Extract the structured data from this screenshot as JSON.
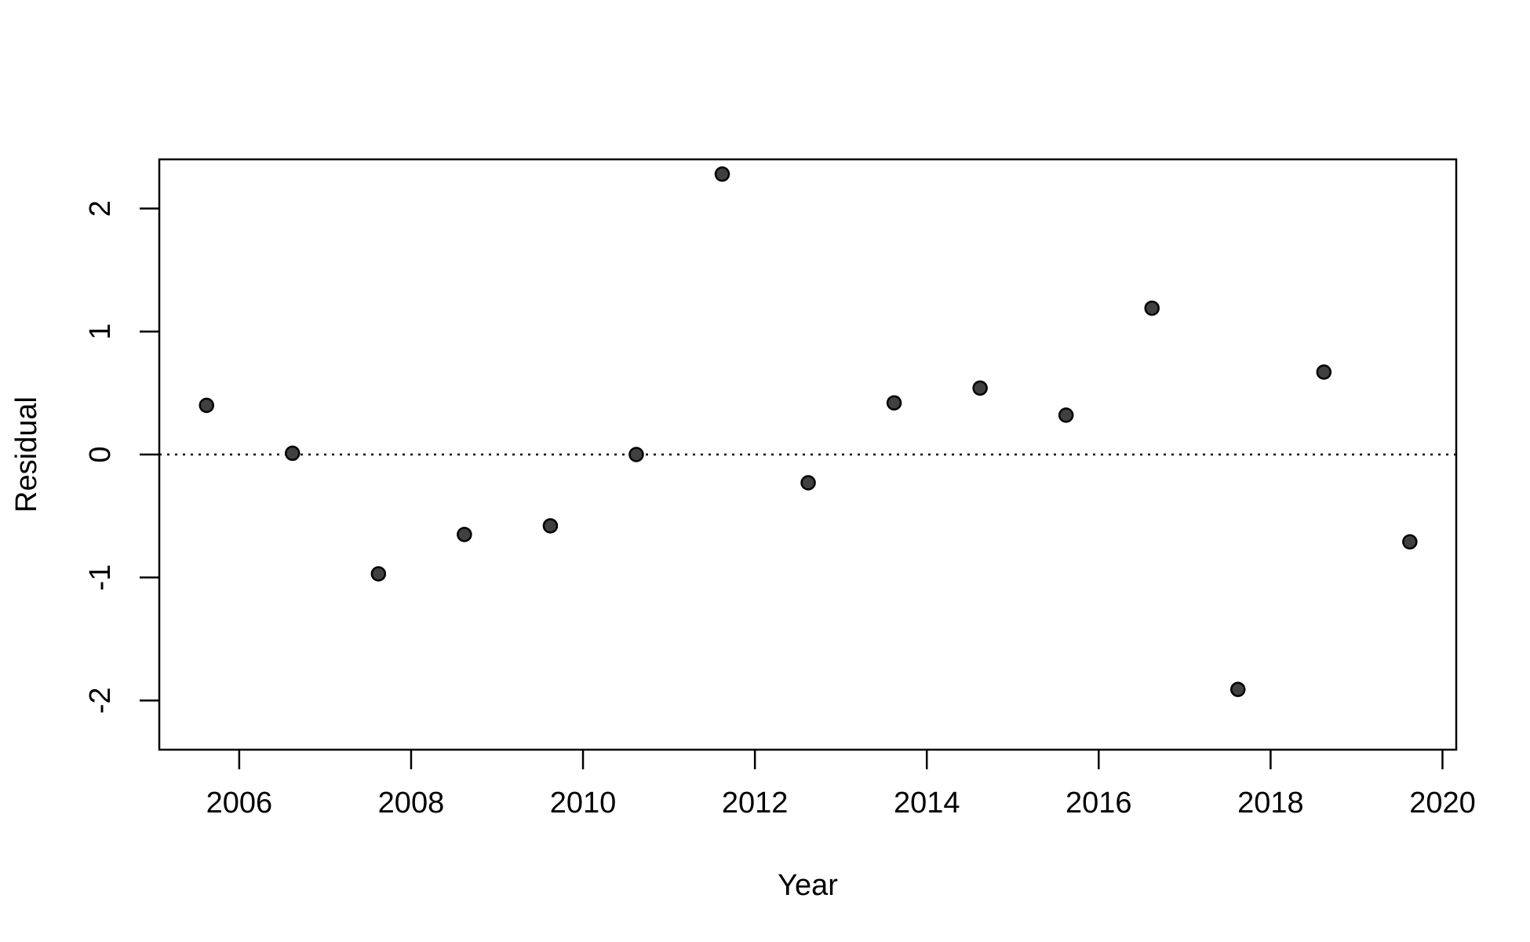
{
  "chart_data": {
    "type": "scatter",
    "title": "",
    "xlabel": "Year",
    "ylabel": "Residual",
    "xlim": [
      2005.07,
      2020.16
    ],
    "ylim": [
      -2.4,
      2.4
    ],
    "x_ticks": [
      2006,
      2008,
      2010,
      2012,
      2014,
      2016,
      2018,
      2020
    ],
    "y_ticks": [
      -2,
      -1,
      0,
      1,
      2
    ],
    "x_tick_labels": [
      "2006",
      "2008",
      "2010",
      "2012",
      "2014",
      "2016",
      "2018",
      "2020"
    ],
    "y_tick_labels": [
      "-2",
      "-1",
      "0",
      "1",
      "2"
    ],
    "reference_line": {
      "y": 0,
      "style": "dotted"
    },
    "grid": false,
    "legend": "none",
    "point_color": "#404040",
    "points": [
      {
        "x": 2005.62,
        "y": 0.4
      },
      {
        "x": 2006.62,
        "y": 0.01
      },
      {
        "x": 2007.62,
        "y": -0.97
      },
      {
        "x": 2008.62,
        "y": -0.65
      },
      {
        "x": 2009.62,
        "y": -0.58
      },
      {
        "x": 2010.62,
        "y": 0.0
      },
      {
        "x": 2011.62,
        "y": 2.28
      },
      {
        "x": 2012.62,
        "y": -0.23
      },
      {
        "x": 2013.62,
        "y": 0.42
      },
      {
        "x": 2014.62,
        "y": 0.54
      },
      {
        "x": 2015.62,
        "y": 0.32
      },
      {
        "x": 2016.62,
        "y": 1.19
      },
      {
        "x": 2017.62,
        "y": -1.91
      },
      {
        "x": 2018.62,
        "y": 0.67
      },
      {
        "x": 2019.62,
        "y": -0.71
      }
    ]
  }
}
